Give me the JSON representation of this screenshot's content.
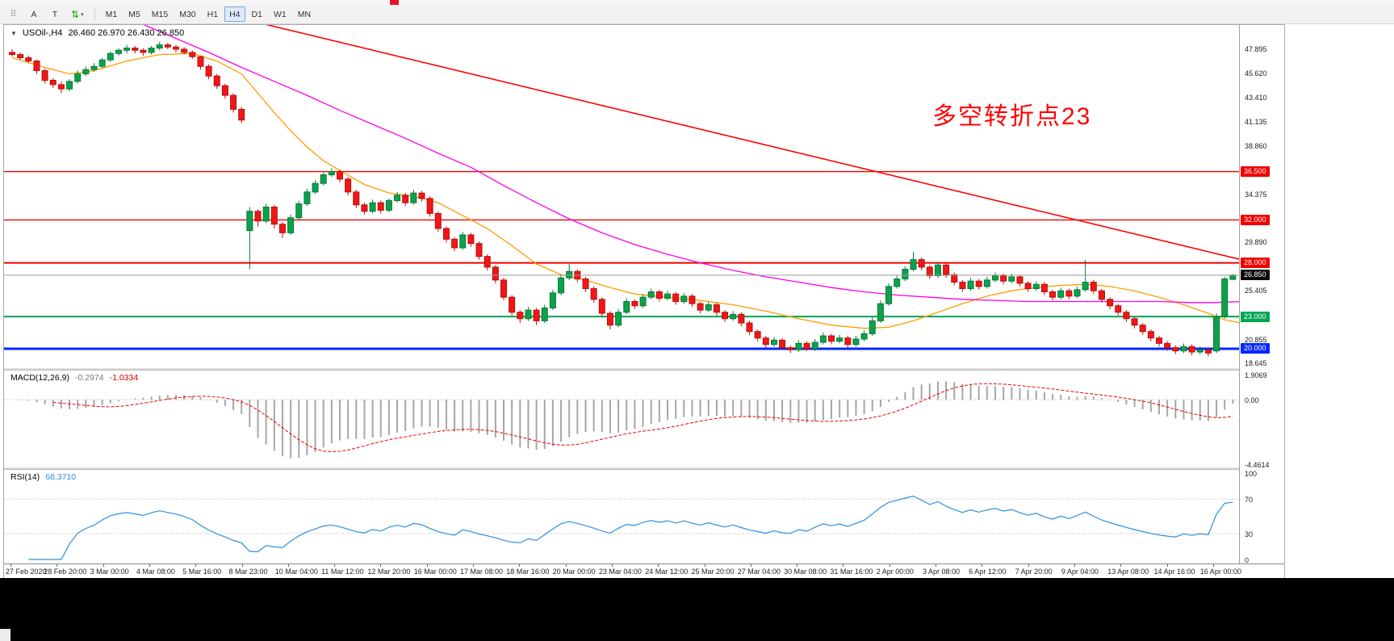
{
  "toolbar": {
    "tools": [
      {
        "id": "drag-handle",
        "glyph": "⠿"
      },
      {
        "id": "annotate",
        "label": "A"
      },
      {
        "id": "text-tool",
        "label": "T"
      },
      {
        "id": "symbol-cycle",
        "glyph": "⇅",
        "caret": "▾"
      }
    ],
    "timeframes": [
      "M1",
      "M5",
      "M15",
      "M30",
      "H1",
      "H4",
      "D1",
      "W1",
      "MN"
    ],
    "selected_timeframe": "H4"
  },
  "chart": {
    "collapse_arrow": "▼",
    "symbol_label": "USOil-,H4",
    "ohlc_label": "26.460 26.970 26.430 26.850",
    "annotation": {
      "text": "多空转折点23",
      "color": "#ff0000"
    },
    "price_axis": {
      "plain_labels": [
        {
          "t": "47.895",
          "p": 47.895
        },
        {
          "t": "45.620",
          "p": 45.62
        },
        {
          "t": "43.410",
          "p": 43.41
        },
        {
          "t": "41.135",
          "p": 41.135
        },
        {
          "t": "38.860",
          "p": 38.86
        },
        {
          "t": "34.375",
          "p": 34.375
        },
        {
          "t": "29.890",
          "p": 29.89
        },
        {
          "t": "25.405",
          "p": 25.405
        },
        {
          "t": "20.855",
          "p": 20.855
        },
        {
          "t": "18.645",
          "p": 18.645
        }
      ]
    },
    "hlines": [
      {
        "price": 36.5,
        "label": "36.500",
        "color": "#f00000",
        "width": 1.4
      },
      {
        "price": 32.0,
        "label": "32.000",
        "color": "#f00000",
        "width": 1.4
      },
      {
        "price": 28.0,
        "label": "28.000",
        "color": "#f00000",
        "width": 2
      },
      {
        "price": 23.0,
        "label": "23.000",
        "color": "#00a651",
        "width": 2
      },
      {
        "price": 20.0,
        "label": "20.000",
        "color": "#0026ff",
        "width": 3
      }
    ],
    "current_price": {
      "price": 26.85,
      "label": "26.850",
      "line_color": "#9a9a9a",
      "badge_bg": "#0a0a0a"
    }
  },
  "chart_data": {
    "type": "candlestick",
    "symbol": "USOil-",
    "timeframe": "H4",
    "current_bar": {
      "open": 26.46,
      "high": 26.97,
      "low": 26.43,
      "close": 26.85
    },
    "y_axis": {
      "min": 18.19,
      "max": 50.15
    },
    "colors": {
      "bull_fill": "#0ca24c",
      "bull_stroke": "#067a36",
      "bear_fill": "#f21616",
      "bear_stroke": "#b80f0f",
      "ma_fast": "#ff9d00",
      "ma_slow": "#ff00e6",
      "trendline": "#ff0000"
    },
    "candles": [
      [
        47.6,
        47.9,
        47.2,
        47.4
      ],
      [
        47.4,
        47.6,
        46.9,
        47.1
      ],
      [
        47.1,
        47.3,
        46.6,
        46.8
      ],
      [
        46.8,
        46.9,
        45.6,
        45.9
      ],
      [
        45.9,
        46.1,
        44.7,
        45.0
      ],
      [
        45.0,
        45.2,
        44.3,
        44.6
      ],
      [
        44.6,
        44.9,
        43.8,
        44.2
      ],
      [
        44.2,
        45.1,
        44.0,
        44.9
      ],
      [
        44.9,
        45.9,
        44.7,
        45.6
      ],
      [
        45.6,
        46.3,
        45.4,
        46.0
      ],
      [
        46.0,
        46.6,
        45.8,
        46.3
      ],
      [
        46.3,
        47.1,
        46.1,
        46.9
      ],
      [
        46.9,
        47.7,
        46.7,
        47.5
      ],
      [
        47.5,
        48.0,
        47.3,
        47.8
      ],
      [
        47.8,
        48.3,
        47.5,
        48.0
      ],
      [
        48.0,
        48.2,
        47.5,
        47.8
      ],
      [
        47.8,
        48.0,
        47.3,
        47.6
      ],
      [
        47.6,
        48.2,
        47.4,
        48.0
      ],
      [
        48.0,
        48.6,
        47.8,
        48.3
      ],
      [
        48.3,
        48.5,
        47.9,
        48.1
      ],
      [
        48.1,
        48.3,
        47.6,
        47.9
      ],
      [
        47.9,
        48.1,
        47.4,
        47.6
      ],
      [
        47.6,
        47.8,
        47.0,
        47.2
      ],
      [
        47.2,
        47.3,
        46.0,
        46.3
      ],
      [
        46.3,
        46.5,
        45.1,
        45.4
      ],
      [
        45.4,
        45.6,
        44.2,
        44.5
      ],
      [
        44.5,
        44.7,
        43.3,
        43.6
      ],
      [
        43.6,
        43.8,
        42.0,
        42.3
      ],
      [
        42.3,
        42.5,
        41.0,
        41.3
      ],
      [
        31.0,
        33.2,
        27.4,
        32.8
      ],
      [
        32.8,
        33.0,
        31.4,
        31.9
      ],
      [
        31.9,
        33.5,
        31.7,
        33.2
      ],
      [
        33.2,
        33.4,
        31.2,
        31.6
      ],
      [
        31.6,
        31.8,
        30.3,
        30.8
      ],
      [
        30.8,
        32.5,
        30.6,
        32.2
      ],
      [
        32.2,
        33.8,
        32.0,
        33.5
      ],
      [
        33.5,
        34.9,
        33.3,
        34.6
      ],
      [
        34.6,
        35.7,
        34.4,
        35.4
      ],
      [
        35.4,
        36.4,
        35.2,
        36.2
      ],
      [
        36.2,
        36.8,
        36.0,
        36.5
      ],
      [
        36.5,
        36.7,
        35.5,
        35.8
      ],
      [
        35.8,
        36.0,
        34.3,
        34.6
      ],
      [
        34.6,
        34.8,
        33.1,
        33.4
      ],
      [
        33.4,
        33.6,
        32.5,
        32.8
      ],
      [
        32.8,
        33.9,
        32.6,
        33.6
      ],
      [
        33.6,
        33.8,
        32.6,
        32.9
      ],
      [
        32.9,
        34.0,
        32.7,
        33.8
      ],
      [
        33.8,
        34.6,
        33.6,
        34.3
      ],
      [
        34.3,
        34.5,
        33.3,
        33.6
      ],
      [
        33.6,
        34.8,
        33.4,
        34.5
      ],
      [
        34.5,
        34.7,
        33.7,
        34.0
      ],
      [
        34.0,
        34.2,
        32.3,
        32.6
      ],
      [
        32.6,
        32.8,
        30.9,
        31.2
      ],
      [
        31.2,
        31.4,
        29.9,
        30.2
      ],
      [
        30.2,
        30.4,
        29.1,
        29.4
      ],
      [
        29.4,
        30.9,
        29.2,
        30.6
      ],
      [
        30.6,
        30.8,
        29.5,
        29.8
      ],
      [
        29.8,
        30.0,
        28.3,
        28.6
      ],
      [
        28.6,
        28.8,
        27.3,
        27.6
      ],
      [
        27.6,
        27.8,
        26.1,
        26.4
      ],
      [
        26.4,
        26.6,
        24.5,
        24.8
      ],
      [
        24.8,
        25.0,
        23.1,
        23.4
      ],
      [
        23.4,
        23.6,
        22.4,
        22.8
      ],
      [
        22.8,
        23.9,
        22.6,
        23.6
      ],
      [
        23.6,
        23.8,
        22.2,
        22.6
      ],
      [
        22.6,
        24.1,
        22.4,
        23.8
      ],
      [
        23.8,
        25.5,
        23.6,
        25.2
      ],
      [
        25.2,
        26.9,
        25.0,
        26.6
      ],
      [
        26.6,
        27.9,
        26.4,
        27.2
      ],
      [
        27.2,
        27.4,
        26.2,
        26.5
      ],
      [
        26.5,
        26.7,
        25.3,
        25.6
      ],
      [
        25.6,
        25.8,
        24.3,
        24.6
      ],
      [
        24.6,
        24.8,
        23.0,
        23.3
      ],
      [
        23.3,
        23.5,
        21.8,
        22.2
      ],
      [
        22.2,
        23.7,
        22.0,
        23.4
      ],
      [
        23.4,
        24.7,
        23.2,
        24.4
      ],
      [
        24.4,
        24.6,
        23.7,
        24.0
      ],
      [
        24.0,
        25.1,
        23.8,
        24.8
      ],
      [
        24.8,
        25.6,
        24.6,
        25.3
      ],
      [
        25.3,
        25.5,
        24.4,
        24.7
      ],
      [
        24.7,
        25.4,
        24.5,
        25.1
      ],
      [
        25.1,
        25.3,
        24.1,
        24.4
      ],
      [
        24.4,
        25.2,
        24.2,
        24.9
      ],
      [
        24.9,
        25.1,
        23.9,
        24.2
      ],
      [
        24.2,
        24.4,
        23.3,
        23.6
      ],
      [
        23.6,
        24.4,
        23.4,
        24.1
      ],
      [
        24.1,
        24.3,
        23.1,
        23.4
      ],
      [
        23.4,
        23.6,
        22.5,
        22.8
      ],
      [
        22.8,
        23.5,
        22.6,
        23.2
      ],
      [
        23.2,
        23.4,
        22.1,
        22.4
      ],
      [
        22.4,
        22.6,
        21.3,
        21.6
      ],
      [
        21.6,
        21.8,
        20.7,
        21.0
      ],
      [
        21.0,
        21.2,
        20.1,
        20.4
      ],
      [
        20.4,
        21.1,
        20.2,
        20.8
      ],
      [
        20.8,
        21.0,
        19.9,
        20.1
      ],
      [
        20.1,
        20.3,
        19.6,
        19.9
      ],
      [
        19.9,
        20.8,
        19.7,
        20.5
      ],
      [
        20.5,
        20.7,
        19.8,
        20.0
      ],
      [
        20.0,
        20.9,
        19.8,
        20.6
      ],
      [
        20.6,
        21.5,
        20.4,
        21.2
      ],
      [
        21.2,
        21.4,
        20.4,
        20.7
      ],
      [
        20.7,
        21.3,
        20.5,
        21.0
      ],
      [
        21.0,
        21.2,
        20.1,
        20.4
      ],
      [
        20.4,
        21.2,
        20.2,
        20.9
      ],
      [
        20.9,
        21.7,
        20.7,
        21.4
      ],
      [
        21.4,
        22.9,
        21.2,
        22.6
      ],
      [
        22.6,
        24.5,
        22.4,
        24.2
      ],
      [
        24.2,
        26.1,
        24.0,
        25.8
      ],
      [
        25.8,
        26.8,
        25.6,
        26.5
      ],
      [
        26.5,
        27.7,
        26.3,
        27.4
      ],
      [
        27.4,
        29.0,
        27.2,
        28.3
      ],
      [
        28.3,
        28.5,
        27.3,
        27.6
      ],
      [
        27.6,
        27.8,
        26.5,
        26.8
      ],
      [
        26.8,
        28.1,
        26.6,
        27.8
      ],
      [
        27.8,
        28.0,
        26.6,
        26.9
      ],
      [
        26.9,
        27.1,
        25.9,
        26.2
      ],
      [
        26.2,
        26.4,
        25.3,
        25.6
      ],
      [
        25.6,
        26.6,
        25.4,
        26.3
      ],
      [
        26.3,
        26.5,
        25.5,
        25.8
      ],
      [
        25.8,
        26.7,
        25.6,
        26.4
      ],
      [
        26.4,
        27.1,
        26.2,
        26.8
      ],
      [
        26.8,
        27.0,
        26.0,
        26.3
      ],
      [
        26.3,
        27.0,
        26.1,
        26.7
      ],
      [
        26.7,
        26.9,
        25.8,
        26.1
      ],
      [
        26.1,
        26.3,
        25.3,
        25.6
      ],
      [
        25.6,
        26.3,
        25.4,
        26.0
      ],
      [
        26.0,
        26.2,
        25.0,
        25.3
      ],
      [
        25.3,
        25.5,
        24.5,
        24.8
      ],
      [
        24.8,
        25.7,
        24.6,
        25.4
      ],
      [
        25.4,
        25.6,
        24.6,
        24.9
      ],
      [
        24.9,
        25.8,
        24.7,
        25.5
      ],
      [
        25.5,
        28.3,
        25.3,
        26.2
      ],
      [
        26.2,
        26.4,
        25.1,
        25.4
      ],
      [
        25.4,
        25.6,
        24.3,
        24.6
      ],
      [
        24.6,
        24.8,
        23.7,
        24.0
      ],
      [
        24.0,
        24.2,
        23.1,
        23.4
      ],
      [
        23.4,
        23.6,
        22.5,
        22.8
      ],
      [
        22.8,
        23.0,
        21.9,
        22.2
      ],
      [
        22.2,
        22.4,
        21.3,
        21.6
      ],
      [
        21.6,
        21.8,
        20.7,
        21.0
      ],
      [
        21.0,
        21.2,
        20.2,
        20.5
      ],
      [
        20.5,
        20.7,
        19.8,
        20.1
      ],
      [
        20.1,
        20.3,
        19.5,
        19.8
      ],
      [
        19.8,
        20.5,
        19.6,
        20.2
      ],
      [
        20.2,
        20.4,
        19.4,
        19.7
      ],
      [
        19.7,
        20.2,
        19.5,
        19.9
      ],
      [
        19.9,
        20.1,
        19.3,
        19.6
      ],
      [
        19.8,
        23.3,
        19.6,
        23.0
      ],
      [
        23.0,
        26.7,
        22.8,
        26.5
      ],
      [
        26.46,
        26.97,
        26.43,
        26.85
      ]
    ],
    "overlays": {
      "ma_fast_orange": [
        [
          0,
          47.1
        ],
        [
          4,
          46.2
        ],
        [
          7,
          45.6
        ],
        [
          10,
          45.9
        ],
        [
          14,
          46.8
        ],
        [
          18,
          47.4
        ],
        [
          22,
          47.5
        ],
        [
          25,
          46.8
        ],
        [
          28,
          45.6
        ],
        [
          30,
          43.8
        ],
        [
          32,
          42.0
        ],
        [
          34,
          40.3
        ],
        [
          36,
          38.8
        ],
        [
          38,
          37.5
        ],
        [
          40,
          36.6
        ],
        [
          43,
          35.3
        ],
        [
          46,
          34.5
        ],
        [
          49,
          34.2
        ],
        [
          52,
          33.6
        ],
        [
          55,
          32.4
        ],
        [
          58,
          31.2
        ],
        [
          61,
          29.6
        ],
        [
          64,
          27.9
        ],
        [
          67,
          26.9
        ],
        [
          70,
          26.4
        ],
        [
          73,
          25.7
        ],
        [
          76,
          25.1
        ],
        [
          80,
          24.8
        ],
        [
          84,
          24.5
        ],
        [
          88,
          24.1
        ],
        [
          92,
          23.5
        ],
        [
          96,
          22.8
        ],
        [
          100,
          22.2
        ],
        [
          104,
          21.9
        ],
        [
          107,
          22.0
        ],
        [
          110,
          22.6
        ],
        [
          113,
          23.4
        ],
        [
          116,
          24.2
        ],
        [
          119,
          24.9
        ],
        [
          122,
          25.4
        ],
        [
          125,
          25.7
        ],
        [
          128,
          25.9
        ],
        [
          131,
          26.0
        ],
        [
          134,
          25.8
        ],
        [
          137,
          25.4
        ],
        [
          140,
          24.8
        ],
        [
          143,
          24.1
        ],
        [
          146,
          23.3
        ],
        [
          148,
          22.7
        ],
        [
          150,
          22.4
        ]
      ],
      "ma_slow_magenta": [
        [
          16,
          50.2
        ],
        [
          20,
          48.9
        ],
        [
          24,
          47.6
        ],
        [
          28,
          46.2
        ],
        [
          32,
          44.9
        ],
        [
          36,
          43.6
        ],
        [
          40,
          42.2
        ],
        [
          44,
          40.9
        ],
        [
          48,
          39.6
        ],
        [
          52,
          38.2
        ],
        [
          56,
          36.9
        ],
        [
          60,
          35.2
        ],
        [
          64,
          33.6
        ],
        [
          68,
          32.1
        ],
        [
          72,
          30.8
        ],
        [
          76,
          29.7
        ],
        [
          80,
          28.8
        ],
        [
          84,
          28.0
        ],
        [
          88,
          27.3
        ],
        [
          92,
          26.7
        ],
        [
          96,
          26.2
        ],
        [
          100,
          25.7
        ],
        [
          104,
          25.3
        ],
        [
          108,
          25.0
        ],
        [
          112,
          24.8
        ],
        [
          116,
          24.6
        ],
        [
          120,
          24.5
        ],
        [
          124,
          24.4
        ],
        [
          128,
          24.4
        ],
        [
          132,
          24.4
        ],
        [
          136,
          24.4
        ],
        [
          140,
          24.4
        ],
        [
          144,
          24.3
        ],
        [
          147,
          24.3
        ],
        [
          150,
          24.4
        ]
      ],
      "trendline_red": [
        [
          31,
          50.2
        ],
        [
          150,
          28.3
        ]
      ]
    },
    "x_axis_labels": [
      "27 Feb 2020",
      "28 Feb 20:00",
      "3 Mar 00:00",
      "4 Mar 08:00",
      "5 Mar 16:00",
      "8 Mar 23:00",
      "10 Mar 04:00",
      "11 Mar 12:00",
      "12 Mar 20:00",
      "16 Mar 00:00",
      "17 Mar 08:00",
      "18 Mar 16:00",
      "20 Mar 00:00",
      "23 Mar 04:00",
      "24 Mar 12:00",
      "25 Mar 20:00",
      "27 Mar 04:00",
      "30 Mar 08:00",
      "31 Mar 16:00",
      "2 Apr 00:00",
      "3 Apr 08:00",
      "6 Apr 12:00",
      "7 Apr 20:00",
      "9 Apr 04:00",
      "13 Apr 08:00",
      "14 Apr 16:00",
      "16 Apr 00:00"
    ]
  },
  "macd_panel": {
    "name_label": "MACD(12,26,9)",
    "value_main": "-0.2974",
    "value_signal": "-1.0334",
    "params": {
      "fast": 12,
      "slow": 26,
      "signal": 9
    },
    "scale_max": 1.9069,
    "scale_min": -4.4614,
    "axis_labels": [
      {
        "v": 1.9069,
        "t": "1.9069"
      },
      {
        "v": 0,
        "t": "0.00"
      },
      {
        "v": -4.4614,
        "t": "-4.4614"
      }
    ],
    "colors": {
      "histogram": "#a6a6a6",
      "signal": "#f00000"
    }
  },
  "rsi_panel": {
    "name_label": "RSI(14)",
    "value": "68.3710",
    "period": 14,
    "levels": [
      70,
      30
    ],
    "axis_labels": [
      {
        "v": 100,
        "t": "100"
      },
      {
        "v": 70,
        "t": "70"
      },
      {
        "v": 30,
        "t": "30"
      },
      {
        "v": 0,
        "t": "0"
      }
    ],
    "color": "#2e8fdf"
  }
}
